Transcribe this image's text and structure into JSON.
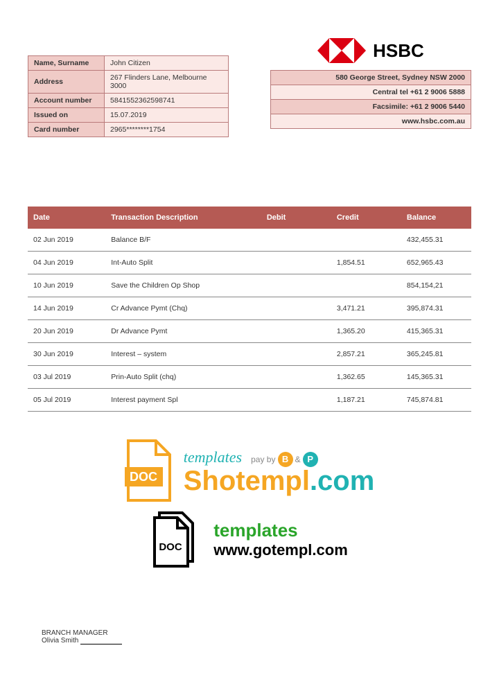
{
  "customer": {
    "rows": [
      {
        "label": "Name, Surname",
        "value": "John Citizen"
      },
      {
        "label": "Address",
        "value": "267 Flinders Lane, Melbourne 3000"
      },
      {
        "label": "Account number",
        "value": "5841552362598741"
      },
      {
        "label": "Issued on",
        "value": "15.07.2019"
      },
      {
        "label": "Card number",
        "value": "2965********1754"
      }
    ]
  },
  "bank": {
    "name": "HSBC",
    "logo_color": "#db0011",
    "info_rows": [
      "580 George Street, Sydney NSW 2000",
      "Central tel +61 2 9006 5888",
      "Facsimile: +61 2 9006 5440",
      "www.hsbc.com.au"
    ]
  },
  "transactions": {
    "header_bg": "#b55a54",
    "columns": [
      "Date",
      "Transaction Description",
      "Debit",
      "Credit",
      "Balance"
    ],
    "rows": [
      {
        "date": "02 Jun 2019",
        "desc": "Balance B/F",
        "debit": "",
        "credit": "",
        "balance": "432,455.31"
      },
      {
        "date": "04 Jun 2019",
        "desc": "Int-Auto Split",
        "debit": "",
        "credit": "1,854.51",
        "balance": "652,965.43"
      },
      {
        "date": "10 Jun 2019",
        "desc": "Save the Children Op Shop",
        "debit": "",
        "credit": "",
        "balance": "854,154,21"
      },
      {
        "date": "14 Jun 2019",
        "desc": "Cr Advance Pymt (Chq)",
        "debit": "",
        "credit": "3,471.21",
        "balance": "395,874.31"
      },
      {
        "date": "20 Jun 2019",
        "desc": "Dr Advance Pymt",
        "debit": "",
        "credit": "1,365.20",
        "balance": "415,365.31"
      },
      {
        "date": "30 Jun 2019",
        "desc": "Interest – system",
        "debit": "",
        "credit": "2,857.21",
        "balance": "365,245.81"
      },
      {
        "date": "03 Jul 2019",
        "desc": "Prin-Auto Split (chq)",
        "debit": "",
        "credit": "1,362.65",
        "balance": "145,365.31"
      },
      {
        "date": "05 Jul 2019",
        "desc": "Interest payment Spl",
        "debit": "",
        "credit": "1,187.21",
        "balance": "745,874.81"
      }
    ]
  },
  "watermark": {
    "templates_script": "templates",
    "payby_label": "pay by",
    "amp": "&",
    "shotempl_sho": "Sho",
    "shotempl_templ": "templ",
    "shotempl_com": ".com",
    "doc_label": "DOC",
    "gotempl_templates": "templates",
    "gotempl_url": "www.gotempl.com",
    "orange": "#f5a623",
    "teal": "#20b2b2",
    "green": "#2aa52a"
  },
  "signature": {
    "title": "BRANCH MANAGER",
    "name": "Olivia Smith"
  }
}
